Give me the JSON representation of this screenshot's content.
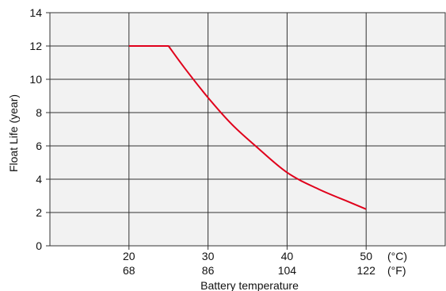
{
  "chart_data": {
    "type": "line",
    "title": "",
    "xlabel": "Battery temperature",
    "ylabel": "Float Life (year)",
    "xlim": [
      10,
      60
    ],
    "ylim": [
      0,
      14
    ],
    "x_ticks": [
      {
        "c": 20,
        "f": "68"
      },
      {
        "c": 30,
        "f": "86"
      },
      {
        "c": 40,
        "f": "104"
      },
      {
        "c": 50,
        "f": "122"
      }
    ],
    "x_ticks_c_text": [
      "20",
      "30",
      "40",
      "50"
    ],
    "unit_c": "(°C)",
    "unit_f": "(°F)",
    "y_ticks": [
      0,
      2,
      4,
      6,
      8,
      10,
      12,
      14
    ],
    "grid": true,
    "line_color": "#e0001b",
    "series": [
      {
        "x": [
          20,
          25,
          27,
          30,
          33,
          36,
          40,
          44,
          48,
          50
        ],
        "values": [
          12,
          12,
          10.7,
          8.9,
          7.3,
          6.0,
          4.4,
          3.4,
          2.6,
          2.2
        ]
      }
    ]
  }
}
